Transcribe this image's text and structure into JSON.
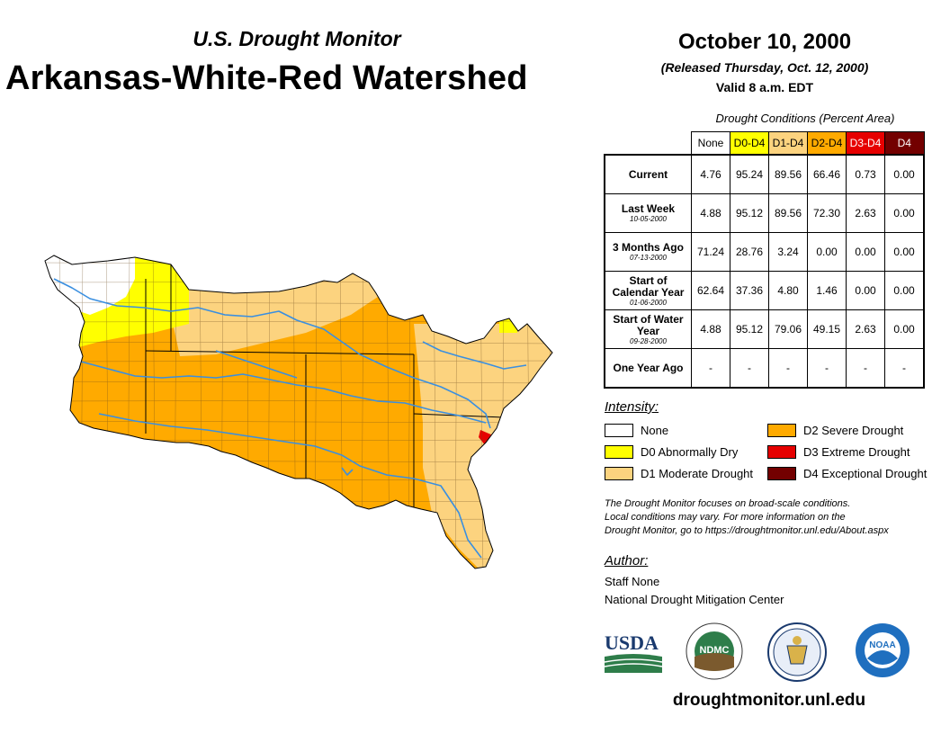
{
  "header": {
    "subtitle": "U.S. Drought Monitor",
    "title": "Arkansas-White-Red Watershed",
    "date": "October 10, 2000",
    "released": "(Released Thursday, Oct. 12, 2000)",
    "valid": "Valid 8 a.m. EDT"
  },
  "table": {
    "caption": "Drought Conditions (Percent Area)",
    "columns": [
      {
        "label": "None",
        "bg": "#ffffff",
        "fg": "#000000"
      },
      {
        "label": "D0-D4",
        "bg": "#ffff00",
        "fg": "#000000"
      },
      {
        "label": "D1-D4",
        "bg": "#fcd37f",
        "fg": "#000000"
      },
      {
        "label": "D2-D4",
        "bg": "#ffaa00",
        "fg": "#000000"
      },
      {
        "label": "D3-D4",
        "bg": "#e60000",
        "fg": "#ffffff"
      },
      {
        "label": "D4",
        "bg": "#730000",
        "fg": "#ffffff"
      }
    ],
    "rows": [
      {
        "label": "Current",
        "date": "",
        "values": [
          "4.76",
          "95.24",
          "89.56",
          "66.46",
          "0.73",
          "0.00"
        ]
      },
      {
        "label": "Last Week",
        "date": "10-05-2000",
        "values": [
          "4.88",
          "95.12",
          "89.56",
          "72.30",
          "2.63",
          "0.00"
        ]
      },
      {
        "label": "3 Months Ago",
        "date": "07-13-2000",
        "values": [
          "71.24",
          "28.76",
          "3.24",
          "0.00",
          "0.00",
          "0.00"
        ]
      },
      {
        "label": "Start of Calendar Year",
        "date": "01-06-2000",
        "values": [
          "62.64",
          "37.36",
          "4.80",
          "1.46",
          "0.00",
          "0.00"
        ]
      },
      {
        "label": "Start of Water Year",
        "date": "09-28-2000",
        "values": [
          "4.88",
          "95.12",
          "79.06",
          "49.15",
          "2.63",
          "0.00"
        ]
      },
      {
        "label": "One Year Ago",
        "date": "",
        "values": [
          "-",
          "-",
          "-",
          "-",
          "-",
          "-"
        ]
      }
    ]
  },
  "legend": {
    "title": "Intensity:",
    "items": [
      {
        "label": "None",
        "color": "#ffffff"
      },
      {
        "label": "D0 Abnormally Dry",
        "color": "#ffff00"
      },
      {
        "label": "D1 Moderate Drought",
        "color": "#fcd37f"
      },
      {
        "label": "D2 Severe Drought",
        "color": "#ffaa00"
      },
      {
        "label": "D3 Extreme Drought",
        "color": "#e60000"
      },
      {
        "label": "D4 Exceptional Drought",
        "color": "#730000"
      }
    ]
  },
  "note": {
    "line1": "The Drought Monitor focuses on broad-scale conditions.",
    "line2": "Local conditions may vary. For more information on the",
    "line3": "Drought Monitor, go to https://droughtmonitor.unl.edu/About.aspx"
  },
  "author": {
    "heading": "Author:",
    "name": "Staff None",
    "org": "National Drought Mitigation Center"
  },
  "logos": {
    "usda": "USDA",
    "ndmc": "NDMC",
    "noaa": "NOAA"
  },
  "footer": {
    "site": "droughtmonitor.unl.edu"
  },
  "map": {
    "colors": {
      "none": "#ffffff",
      "d0": "#ffff00",
      "d1": "#fcd37f",
      "d2": "#ffaa00",
      "d3": "#e60000",
      "d4": "#730000",
      "river": "#3a8fe0",
      "county_line": "#6b4a1f"
    }
  }
}
